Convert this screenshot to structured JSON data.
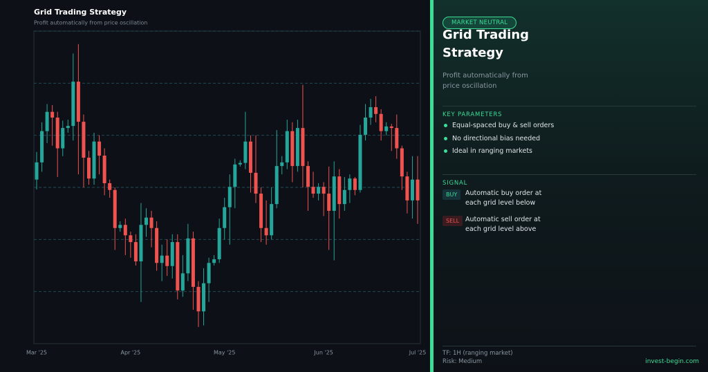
{
  "chart_data": {
    "type": "candlestick",
    "title": "Grid Trading Strategy",
    "subtitle": "Profit automatically from price oscillation",
    "categories": [
      "Mar '25",
      null,
      null,
      null,
      null,
      null,
      null,
      null,
      null,
      null,
      null,
      null,
      null,
      null,
      null,
      null,
      null,
      null,
      "Apr '25",
      null,
      null,
      null,
      null,
      null,
      null,
      null,
      null,
      null,
      null,
      null,
      null,
      null,
      null,
      null,
      null,
      null,
      "May '25",
      null,
      null,
      null,
      null,
      null,
      null,
      null,
      null,
      null,
      null,
      null,
      null,
      null,
      null,
      null,
      null,
      null,
      null,
      "Jun '25",
      null,
      null,
      null,
      null,
      null,
      null,
      null,
      null,
      null,
      null,
      null,
      null,
      null,
      null,
      null,
      null,
      null,
      "Jul '25"
    ],
    "open": [
      31.5,
      34.8,
      40.8,
      44.5,
      43.4,
      37.5,
      41.4,
      41.8,
      50.3,
      42.6,
      35.7,
      31.7,
      38.8,
      36.1,
      30.8,
      29.5,
      22.2,
      22.8,
      20.8,
      19.5,
      15.8,
      22.8,
      24.2,
      22.2,
      15.5,
      16.9,
      14.9,
      19.5,
      10.2,
      13.5,
      20.2,
      10.9,
      6.2,
      11.6,
      15.5,
      16.2,
      22.2,
      26.2,
      30.1,
      34.4,
      34.7,
      38.8,
      32.8,
      28.8,
      22.2,
      20.8,
      26.8,
      34.1,
      34.8,
      40.8,
      34.1,
      41.4,
      34.1,
      30.1,
      28.8,
      30.1,
      28.8,
      25.5,
      32.1,
      26.8,
      29.5,
      31.7,
      29.5,
      40.1,
      43.4,
      45.4,
      44.1,
      40.8,
      41.7,
      41.4,
      37.5,
      32.1,
      27.5,
      31.5
    ],
    "high": [
      36.8,
      42.5,
      46.0,
      45.8,
      44.5,
      42.8,
      43.0,
      55.7,
      57.5,
      44.0,
      37.0,
      40.5,
      40.0,
      37.5,
      31.5,
      30.0,
      23.5,
      24.0,
      21.5,
      21.0,
      27.0,
      26.0,
      25.5,
      23.5,
      19.0,
      20.0,
      21.0,
      21.0,
      17.0,
      23.0,
      21.5,
      12.0,
      14.5,
      16.5,
      17.0,
      24.0,
      28.0,
      32.5,
      35.5,
      35.2,
      44.5,
      40.0,
      40.0,
      30.0,
      27.5,
      30.0,
      41.0,
      36.0,
      43.0,
      42.5,
      43.0,
      49.7,
      35.0,
      33.0,
      30.8,
      31.0,
      34.0,
      35.0,
      33.5,
      32.0,
      32.5,
      32.0,
      42.0,
      46.0,
      47.0,
      47.5,
      45.0,
      42.5,
      42.2,
      44.0,
      38.0,
      33.0,
      36.0,
      36.0
    ],
    "low": [
      29.6,
      33.0,
      38.5,
      38.0,
      32.0,
      36.0,
      40.5,
      39.0,
      32.5,
      30.0,
      30.5,
      30.5,
      32.5,
      28.5,
      28.0,
      18.0,
      21.5,
      17.0,
      16.5,
      15.0,
      8.0,
      20.5,
      18.5,
      14.0,
      12.0,
      13.0,
      12.5,
      8.5,
      9.0,
      12.0,
      6.5,
      3.2,
      3.5,
      8.0,
      15.0,
      15.5,
      20.0,
      19.0,
      26.0,
      34.0,
      33.5,
      29.0,
      27.0,
      19.5,
      19.0,
      20.0,
      26.0,
      32.5,
      33.5,
      31.0,
      33.0,
      30.0,
      25.5,
      28.0,
      27.5,
      24.5,
      18.0,
      16.0,
      24.0,
      25.5,
      27.0,
      28.5,
      29.0,
      39.0,
      42.0,
      42.5,
      39.0,
      40.0,
      37.0,
      35.5,
      29.5,
      25.0,
      24.0,
      23.0
    ],
    "close": [
      34.8,
      40.8,
      44.5,
      43.4,
      37.5,
      41.4,
      41.8,
      50.3,
      42.6,
      35.7,
      31.7,
      38.8,
      36.1,
      30.8,
      29.5,
      22.2,
      22.8,
      20.8,
      19.5,
      15.8,
      22.8,
      24.2,
      22.2,
      15.5,
      16.9,
      14.9,
      19.5,
      10.2,
      13.5,
      20.2,
      10.9,
      6.2,
      11.6,
      15.5,
      16.2,
      22.2,
      26.2,
      30.1,
      34.4,
      34.7,
      38.8,
      32.8,
      28.8,
      22.2,
      20.8,
      26.8,
      34.1,
      34.8,
      40.8,
      34.1,
      41.4,
      34.1,
      30.1,
      28.8,
      30.1,
      28.8,
      25.5,
      32.1,
      26.8,
      29.5,
      31.7,
      29.5,
      40.1,
      43.4,
      45.4,
      44.1,
      40.8,
      41.7,
      41.4,
      37.5,
      32.1,
      27.5,
      31.5,
      27.5
    ],
    "up_color": "#26a69a",
    "down_color": "#ef5350",
    "ylim": [
      0,
      60
    ],
    "grid_levels": [
      10,
      20,
      30,
      40,
      50,
      60
    ],
    "grid": true
  },
  "panel": {
    "badge": "MARKET NEUTRAL",
    "title": "Grid Trading Strategy",
    "subtitle": "Profit automatically from price oscillation",
    "params_heading": "KEY PARAMETERS",
    "params": [
      "Equal-spaced buy & sell orders",
      "No directional bias needed",
      "Ideal in ranging markets"
    ],
    "signal_heading": "SIGNAL",
    "signals": [
      {
        "tag": "BUY",
        "text": "Automatic buy order at each grid level below"
      },
      {
        "tag": "SELL",
        "text": "Automatic sell order at each grid level above"
      }
    ],
    "footer": [
      "TF: 1H (ranging market)",
      "Risk: Medium"
    ],
    "brand": "invest-begin.com"
  }
}
